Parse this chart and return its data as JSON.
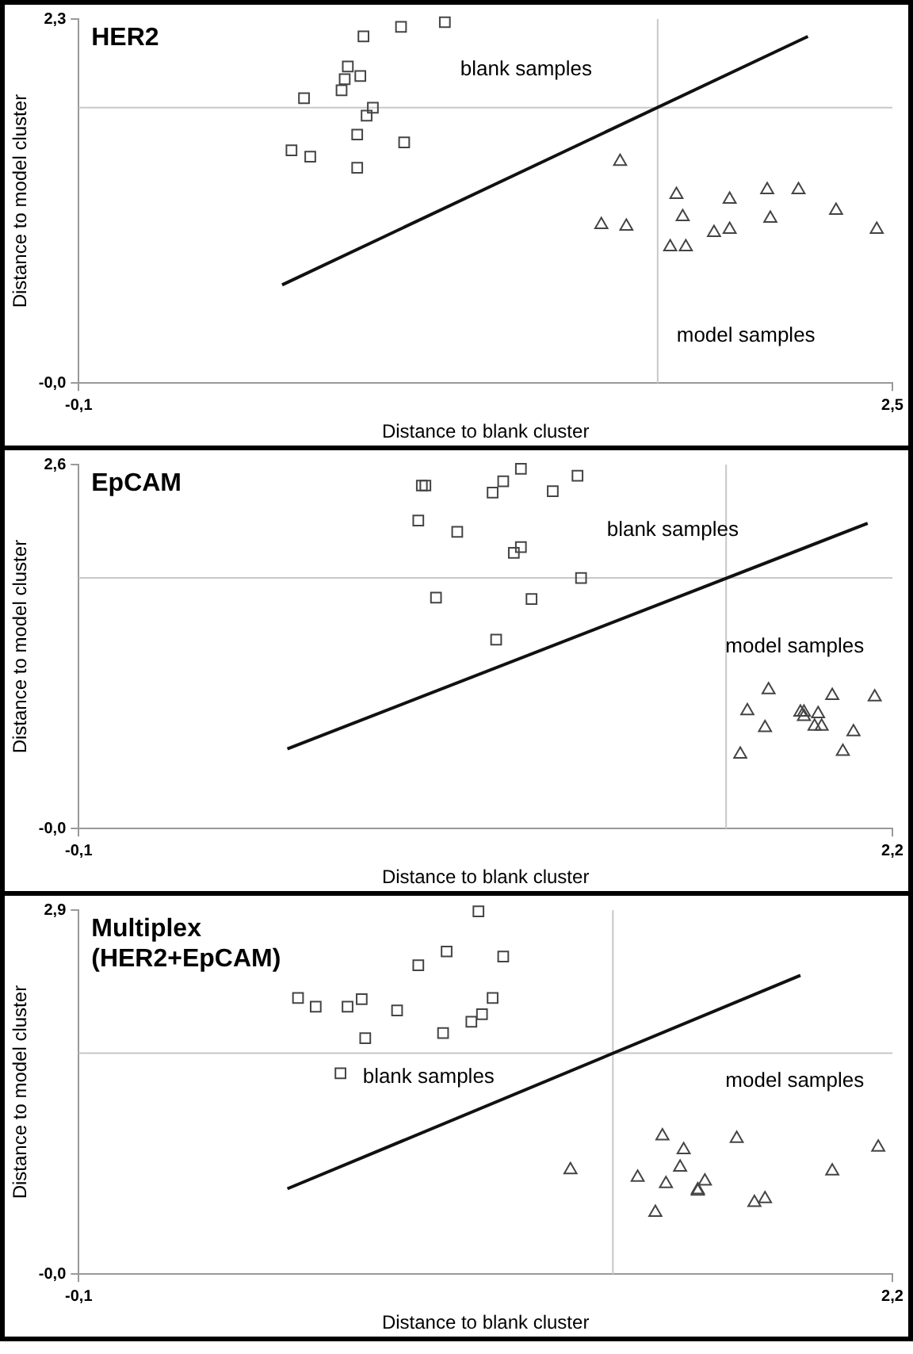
{
  "chart_data": [
    {
      "type": "scatter",
      "title": "HER2",
      "xlabel": "Distance to blank cluster",
      "ylabel": "Distance to model cluster",
      "xlim": [
        -0.1,
        2.5
      ],
      "ylim": [
        0,
        2.3
      ],
      "xticks": [
        {
          "value": -0.1,
          "label": "-0,1"
        },
        {
          "value": 2.5,
          "label": "2,5"
        }
      ],
      "yticks": [
        {
          "value": 0,
          "label": "-0,0"
        },
        {
          "value": 2.3,
          "label": "2,3"
        }
      ],
      "grid": false,
      "legend": false,
      "series": [
        {
          "type": "scatter",
          "marker": "square",
          "color": "#444444",
          "x": [
            0.58,
            0.64,
            0.62,
            0.74,
            0.75,
            0.76,
            0.8,
            0.81,
            0.84,
            0.82,
            0.79,
            0.79,
            0.94,
            0.93,
            1.07
          ],
          "values": [
            1.47,
            1.43,
            1.8,
            1.85,
            1.92,
            2.0,
            1.94,
            2.19,
            1.74,
            1.69,
            1.57,
            1.36,
            1.52,
            2.25,
            2.28
          ]
        },
        {
          "type": "scatter",
          "marker": "triangle",
          "color": "#444444",
          "x": [
            1.57,
            1.65,
            1.63,
            1.81,
            1.83,
            1.79,
            1.84,
            1.93,
            1.98,
            1.98,
            2.1,
            2.11,
            2.2,
            2.32,
            2.45
          ],
          "values": [
            1.0,
            0.99,
            1.4,
            1.19,
            1.05,
            0.86,
            0.86,
            0.95,
            0.97,
            1.16,
            1.22,
            1.04,
            1.22,
            1.09,
            0.97
          ]
        },
        {
          "type": "line",
          "marker": "none",
          "line_style": "solid",
          "color": "#111111",
          "x": [
            0.55,
            2.23
          ],
          "values": [
            0.62,
            2.19
          ]
        }
      ],
      "ref_lines": [
        {
          "axis": "x",
          "value": 1.75,
          "color": "#c8c8c8"
        },
        {
          "axis": "y",
          "value": 1.74,
          "color": "#c8c8c8"
        }
      ],
      "annotations": [
        "blank samples",
        "model samples"
      ]
    },
    {
      "type": "scatter",
      "title": "EpCAM",
      "xlabel": "Distance to blank cluster",
      "ylabel": "Distance to model cluster",
      "xlim": [
        -0.1,
        2.2
      ],
      "ylim": [
        0,
        2.6
      ],
      "xticks": [
        {
          "value": -0.1,
          "label": "-0,1"
        },
        {
          "value": 2.2,
          "label": "2,2"
        }
      ],
      "yticks": [
        {
          "value": 0,
          "label": "-0,0"
        },
        {
          "value": 2.6,
          "label": "2,6"
        }
      ],
      "grid": false,
      "legend": false,
      "series": [
        {
          "type": "scatter",
          "marker": "square",
          "color": "#444444",
          "x": [
            0.86,
            0.87,
            0.88,
            0.91,
            0.97,
            1.07,
            1.1,
            1.15,
            1.15,
            1.13,
            1.08,
            1.18,
            1.24,
            1.31,
            1.32
          ],
          "values": [
            2.2,
            2.45,
            2.45,
            1.65,
            2.12,
            2.4,
            2.48,
            2.57,
            2.01,
            1.97,
            1.35,
            1.64,
            2.41,
            2.52,
            1.79
          ]
        },
        {
          "type": "scatter",
          "marker": "triangle",
          "color": "#444444",
          "x": [
            1.77,
            1.79,
            1.84,
            1.85,
            1.94,
            1.95,
            1.95,
            1.98,
            1.99,
            2.0,
            2.03,
            2.06,
            2.09,
            2.15
          ],
          "values": [
            0.53,
            0.84,
            0.72,
            0.99,
            0.83,
            0.83,
            0.8,
            0.73,
            0.82,
            0.73,
            0.95,
            0.55,
            0.69,
            0.94
          ]
        },
        {
          "type": "line",
          "marker": "none",
          "line_style": "solid",
          "color": "#111111",
          "x": [
            0.49,
            2.13
          ],
          "values": [
            0.57,
            2.18
          ]
        }
      ],
      "ref_lines": [
        {
          "axis": "x",
          "value": 1.73,
          "color": "#c8c8c8"
        },
        {
          "axis": "y",
          "value": 1.79,
          "color": "#c8c8c8"
        }
      ],
      "annotations": [
        "blank samples",
        "model samples"
      ]
    },
    {
      "type": "scatter",
      "title": "Multiplex\n(HER2+EpCAM)",
      "xlabel": "Distance to blank cluster",
      "ylabel": "Distance to model cluster",
      "xlim": [
        -0.1,
        2.2
      ],
      "ylim": [
        0,
        2.9
      ],
      "xticks": [
        {
          "value": -0.1,
          "label": "-0,1"
        },
        {
          "value": 2.2,
          "label": "2,2"
        }
      ],
      "yticks": [
        {
          "value": 0,
          "label": "-0,0"
        },
        {
          "value": 2.9,
          "label": "2,9"
        }
      ],
      "grid": false,
      "legend": false,
      "series": [
        {
          "type": "scatter",
          "marker": "square",
          "color": "#444444",
          "x": [
            0.52,
            0.57,
            0.66,
            0.7,
            0.71,
            0.64,
            0.8,
            0.86,
            0.93,
            0.94,
            1.01,
            1.04,
            1.07,
            1.1,
            1.03
          ],
          "values": [
            2.2,
            2.13,
            2.13,
            2.19,
            1.88,
            1.6,
            2.1,
            2.46,
            1.92,
            2.57,
            2.01,
            2.07,
            2.2,
            2.53,
            2.89
          ]
        },
        {
          "type": "scatter",
          "marker": "triangle",
          "color": "#444444",
          "x": [
            1.29,
            1.48,
            1.53,
            1.55,
            1.56,
            1.6,
            1.61,
            1.65,
            1.65,
            1.67,
            1.76,
            1.81,
            1.84,
            2.03,
            2.16
          ],
          "values": [
            0.83,
            0.77,
            0.49,
            1.1,
            0.72,
            0.85,
            0.99,
            0.67,
            0.66,
            0.74,
            1.08,
            0.57,
            0.6,
            0.82,
            1.01
          ]
        },
        {
          "type": "line",
          "marker": "none",
          "line_style": "solid",
          "color": "#111111",
          "x": [
            0.49,
            1.94
          ],
          "values": [
            0.68,
            2.38
          ]
        }
      ],
      "ref_lines": [
        {
          "axis": "x",
          "value": 1.41,
          "color": "#c8c8c8"
        },
        {
          "axis": "y",
          "value": 1.76,
          "color": "#c8c8c8"
        }
      ],
      "annotations": [
        "blank samples",
        "model samples"
      ]
    }
  ]
}
